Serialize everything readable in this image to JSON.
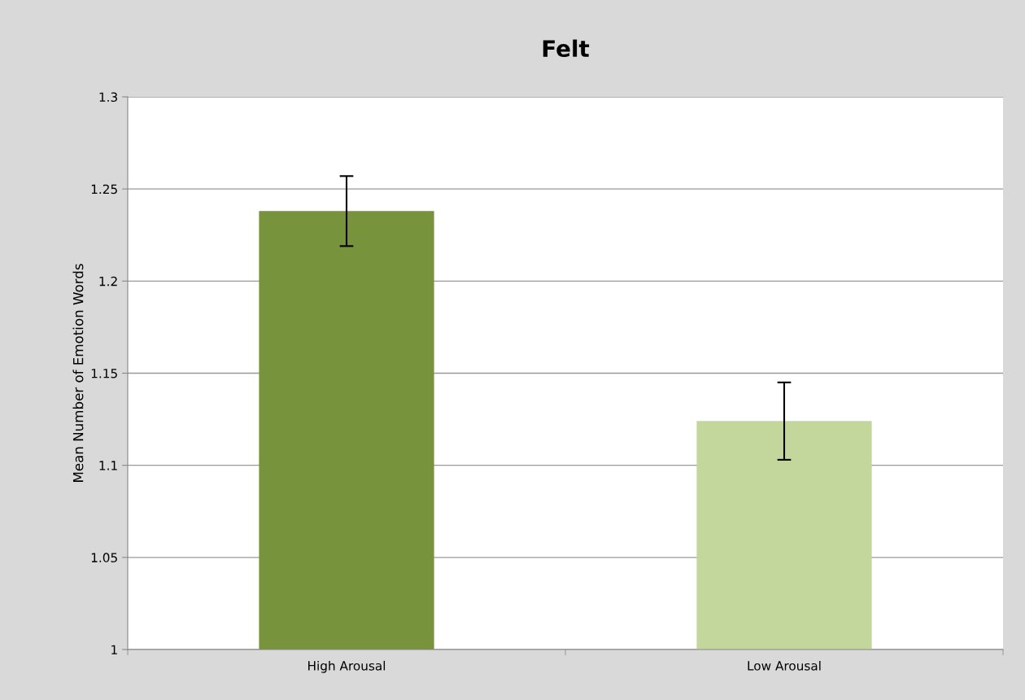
{
  "chart_data": {
    "type": "bar",
    "title": "Felt",
    "ylabel": "Mean Number of Emotion Words",
    "categories": [
      "High Arousal",
      "Low Arousal"
    ],
    "values": [
      1.238,
      1.124
    ],
    "colors": [
      "#77933c",
      "#c3d69b"
    ],
    "errors": [
      0.019,
      0.021
    ],
    "ylim": [
      1,
      1.3
    ],
    "yticks": [
      1,
      1.05,
      1.1,
      1.15,
      1.2,
      1.25,
      1.3
    ],
    "grid": "y",
    "legend": false
  }
}
